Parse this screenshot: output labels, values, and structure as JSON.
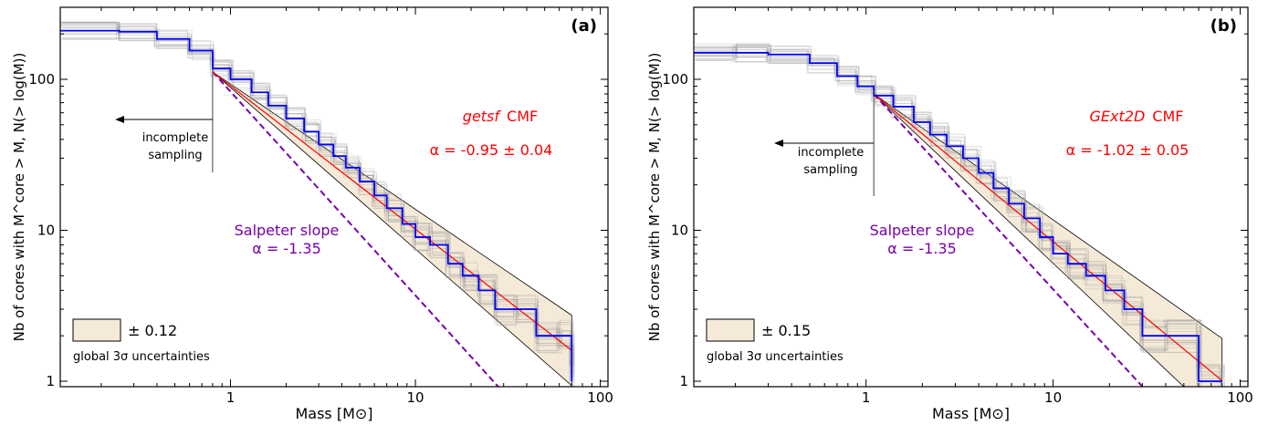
{
  "chart_data": [
    {
      "type": "line",
      "panel_label": "(a)",
      "xlabel": "Mass [M⊙]",
      "ylabel": "Nb of cores with M^core > M, N(> log(M))",
      "x_scale": "log",
      "y_scale": "log",
      "xlim": [
        0.12,
        110
      ],
      "ylim": [
        0.92,
        300
      ],
      "x_ticks": [
        1,
        10,
        100
      ],
      "x_tick_labels": [
        "1",
        "10",
        "100"
      ],
      "y_ticks": [
        1,
        10,
        100
      ],
      "y_tick_labels": [
        "1",
        "10",
        "100"
      ],
      "grid": false,
      "series": [
        {
          "name": "getsf CMF",
          "kind": "step",
          "color": "#0000ff",
          "x": [
            0.12,
            0.25,
            0.4,
            0.6,
            0.8,
            1.0,
            1.3,
            1.6,
            2.0,
            2.5,
            3.0,
            3.6,
            4.2,
            5.0,
            6.0,
            7.0,
            8.5,
            10.0,
            12.0,
            15.0,
            18.0,
            22.0,
            27.0,
            35.0,
            45.0,
            60.0,
            70.0
          ],
          "y": [
            210,
            207,
            185,
            155,
            118,
            100,
            82,
            67,
            55,
            45,
            37,
            31,
            26,
            21,
            17,
            14,
            11,
            9,
            8,
            6,
            5,
            4,
            3,
            3,
            2,
            2,
            1
          ]
        }
      ],
      "fit": {
        "alpha_text": "α = -0.95 ± 0.04",
        "alpha": -0.95,
        "x_range": [
          0.8,
          70
        ],
        "y_start": 112,
        "color": "#ff0000"
      },
      "uncertainty_band": {
        "label": "± 0.12",
        "x_range": [
          0.8,
          70
        ],
        "color": "#f5ead8"
      },
      "salpeter": {
        "label_line1": "Salpeter slope",
        "label_line2": "α = -1.35",
        "alpha": -1.35,
        "x_start": 0.8,
        "y_start": 112,
        "color": "#7700aa"
      },
      "completeness_limit": {
        "x": 0.8,
        "label_line1": "incomplete",
        "label_line2": "sampling"
      },
      "annotations": {
        "cmf_title_italic": "getsf",
        "cmf_title_suffix": "CMF",
        "legend_note": "global 3σ uncertainties"
      }
    },
    {
      "type": "line",
      "panel_label": "(b)",
      "xlabel": "Mass [M⊙]",
      "ylabel": "Nb of cores with M^core > M, N(> log(M))",
      "x_scale": "log",
      "y_scale": "log",
      "xlim": [
        0.12,
        110
      ],
      "ylim": [
        0.92,
        300
      ],
      "x_ticks": [
        1,
        10,
        100
      ],
      "x_tick_labels": [
        "1",
        "10",
        "100"
      ],
      "y_ticks": [
        1,
        10,
        100
      ],
      "y_tick_labels": [
        "1",
        "10",
        "100"
      ],
      "grid": false,
      "series": [
        {
          "name": "GExt2D CMF",
          "kind": "step",
          "color": "#0000ff",
          "x": [
            0.12,
            0.2,
            0.3,
            0.5,
            0.7,
            0.9,
            1.1,
            1.4,
            1.8,
            2.2,
            2.7,
            3.3,
            4.0,
            4.8,
            5.8,
            7.0,
            8.5,
            10.0,
            12.0,
            15.0,
            19.0,
            24.0,
            30.0,
            40.0,
            60.0,
            80.0
          ],
          "y": [
            150,
            150,
            146,
            128,
            105,
            90,
            78,
            66,
            52,
            43,
            36,
            30,
            24,
            19,
            15,
            12,
            9,
            7,
            6,
            5,
            4,
            3,
            2,
            2,
            1,
            1
          ]
        }
      ],
      "fit": {
        "alpha_text": "α = -1.02 ± 0.05",
        "alpha": -1.02,
        "x_range": [
          1.1,
          80
        ],
        "y_start": 80,
        "color": "#ff0000"
      },
      "uncertainty_band": {
        "label": "± 0.15",
        "x_range": [
          1.1,
          80
        ],
        "color": "#f5ead8"
      },
      "salpeter": {
        "label_line1": "Salpeter slope",
        "label_line2": "α = -1.35",
        "alpha": -1.35,
        "x_start": 1.1,
        "y_start": 80,
        "color": "#7700aa"
      },
      "completeness_limit": {
        "x": 1.1,
        "label_line1": "incomplete",
        "label_line2": "sampling"
      },
      "annotations": {
        "cmf_title_italic": "GExt2D",
        "cmf_title_suffix": "CMF",
        "legend_note": "global 3σ uncertainties"
      }
    }
  ]
}
